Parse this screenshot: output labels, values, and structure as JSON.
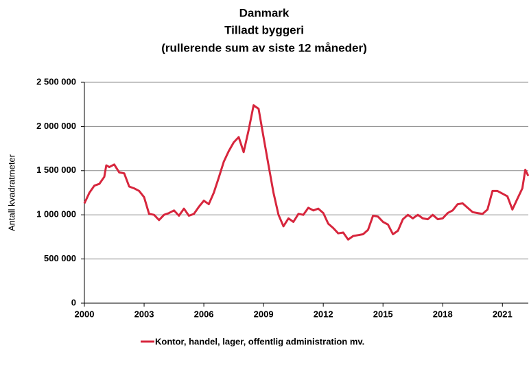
{
  "chart_data": {
    "type": "line",
    "title": "Danmark",
    "subtitle": [
      "Tilladt byggeri",
      "(rullerende sum av siste 12 måneder)"
    ],
    "ylabel": "Antall kvadratmeter",
    "xlim": [
      2000,
      2022.3
    ],
    "xticks": [
      2000,
      2003,
      2006,
      2009,
      2012,
      2015,
      2018,
      2021
    ],
    "ylim": [
      0,
      2500000
    ],
    "yticks": [
      {
        "value": 0,
        "label": "0"
      },
      {
        "value": 500000,
        "label": "500 000"
      },
      {
        "value": 1000000,
        "label": "1 000 000"
      },
      {
        "value": 1500000,
        "label": "1 500 000"
      },
      {
        "value": 2000000,
        "label": "2 000 000"
      },
      {
        "value": 2500000,
        "label": "2 500 000"
      }
    ],
    "grid": true,
    "legend": "bottom",
    "series": [
      {
        "name": "Kontor, handel, lager, offentlig administration mv.",
        "color": "#d7263d",
        "x": [
          2000,
          2000.25,
          2000.5,
          2000.75,
          2001,
          2001.1,
          2001.25,
          2001.5,
          2001.75,
          2002,
          2002.25,
          2002.5,
          2002.75,
          2003,
          2003.25,
          2003.5,
          2003.75,
          2004,
          2004.25,
          2004.5,
          2004.75,
          2005,
          2005.25,
          2005.5,
          2005.75,
          2006,
          2006.25,
          2006.5,
          2006.75,
          2007,
          2007.25,
          2007.5,
          2007.75,
          2008,
          2008.25,
          2008.5,
          2008.75,
          2009,
          2009.25,
          2009.5,
          2009.75,
          2010,
          2010.25,
          2010.5,
          2010.75,
          2011,
          2011.25,
          2011.5,
          2011.75,
          2012,
          2012.25,
          2012.5,
          2012.75,
          2013,
          2013.25,
          2013.5,
          2013.75,
          2014,
          2014.25,
          2014.5,
          2014.75,
          2015,
          2015.25,
          2015.5,
          2015.75,
          2016,
          2016.25,
          2016.5,
          2016.75,
          2017,
          2017.25,
          2017.5,
          2017.75,
          2018,
          2018.25,
          2018.5,
          2018.75,
          2019,
          2019.25,
          2019.5,
          2019.75,
          2020,
          2020.25,
          2020.5,
          2020.75,
          2021,
          2021.25,
          2021.5,
          2021.75,
          2022,
          2022.15,
          2022.3
        ],
        "values": [
          1130000,
          1250000,
          1330000,
          1350000,
          1430000,
          1560000,
          1540000,
          1570000,
          1480000,
          1470000,
          1320000,
          1300000,
          1270000,
          1200000,
          1010000,
          1000000,
          940000,
          1000000,
          1020000,
          1050000,
          990000,
          1070000,
          990000,
          1010000,
          1090000,
          1160000,
          1120000,
          1250000,
          1420000,
          1600000,
          1720000,
          1820000,
          1880000,
          1710000,
          1960000,
          2240000,
          2200000,
          1880000,
          1560000,
          1250000,
          1000000,
          870000,
          960000,
          920000,
          1010000,
          1000000,
          1080000,
          1050000,
          1070000,
          1020000,
          900000,
          850000,
          790000,
          800000,
          720000,
          760000,
          770000,
          780000,
          830000,
          990000,
          980000,
          920000,
          890000,
          780000,
          820000,
          950000,
          1000000,
          960000,
          1000000,
          960000,
          950000,
          1000000,
          950000,
          960000,
          1020000,
          1050000,
          1120000,
          1130000,
          1080000,
          1030000,
          1020000,
          1010000,
          1060000,
          1270000,
          1270000,
          1240000,
          1210000,
          1060000,
          1180000,
          1300000,
          1510000,
          1440000
        ]
      }
    ]
  }
}
